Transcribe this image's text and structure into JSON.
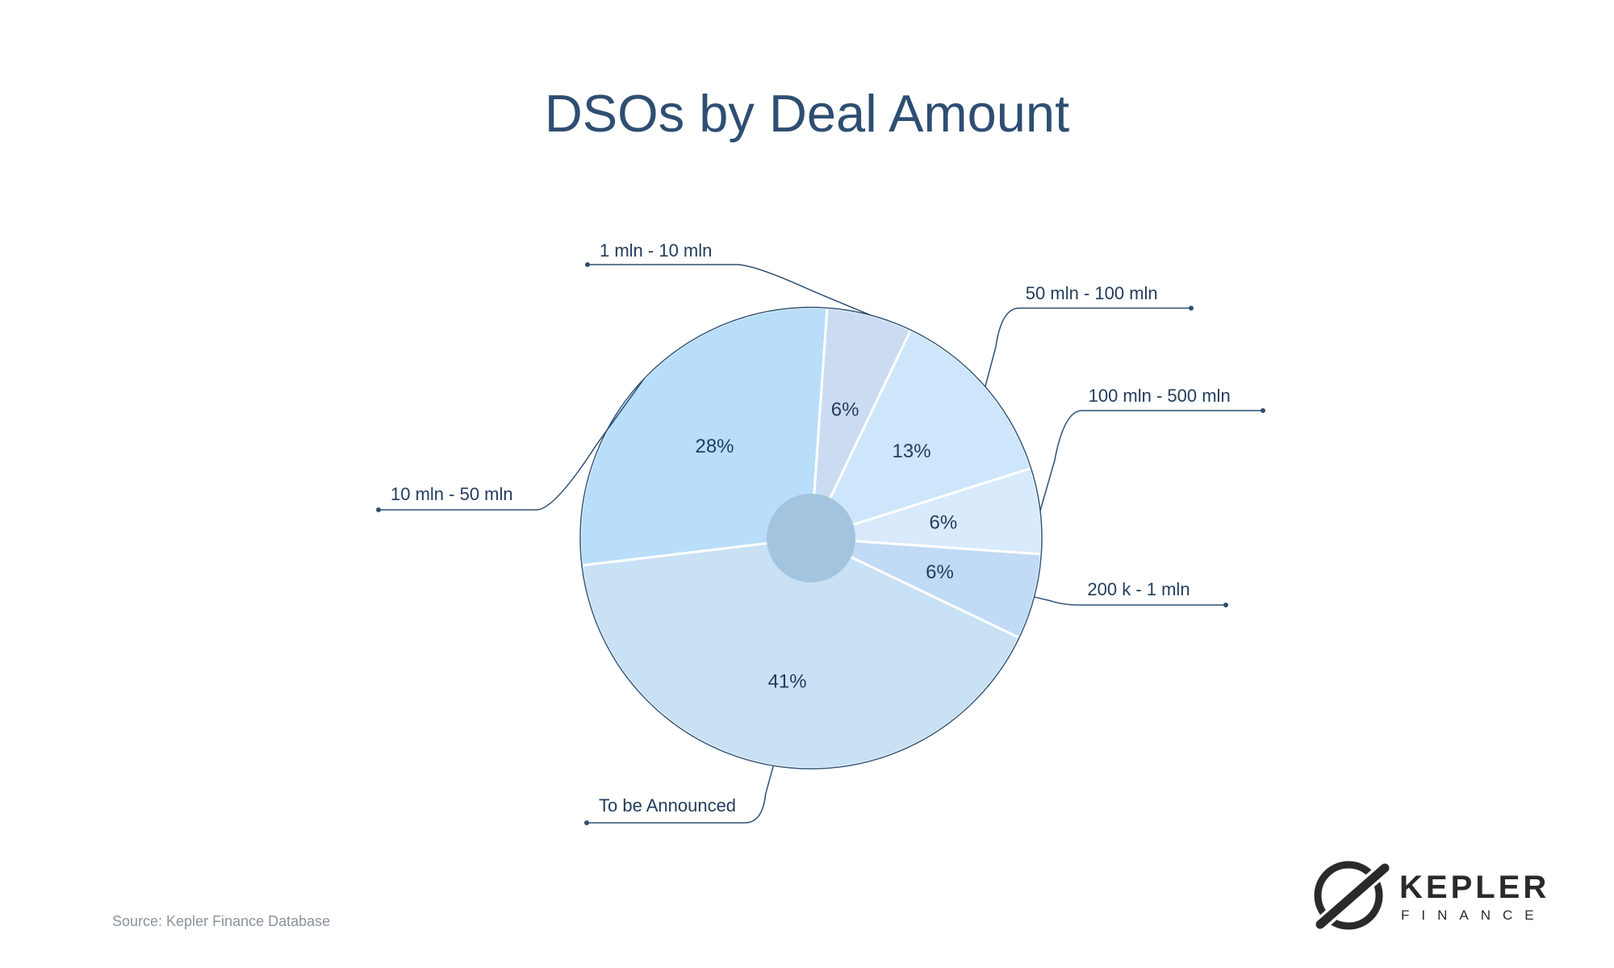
{
  "chart_data": {
    "type": "pie",
    "title": "DSOs by Deal Amount",
    "categories": [
      "1 mln - 10 mln",
      "50 mln - 100 mln",
      "100 mln - 500 mln",
      "200 k - 1 mln",
      "To be Announced",
      "10 mln - 50 mln"
    ],
    "values": [
      6,
      13,
      6,
      6,
      41,
      28
    ],
    "value_labels": [
      "6%",
      "13%",
      "6%",
      "6%",
      "41%",
      "28%"
    ],
    "colors": [
      "#cbdcf2",
      "#cde6fb",
      "#d8eafc",
      "#c1dbf6",
      "#c8e1f4",
      "#b8def9"
    ],
    "center_hole_color": "#a3c4de",
    "outline_color": "#34587d",
    "leader_line_color": "#2e4e72",
    "legend": "none — category labels attached with leader lines"
  },
  "source_note": "Source: Kepler Finance Database",
  "logo": {
    "line1": "KEPLER",
    "line2": "FINANCE",
    "icon": "kepler-logo-icon"
  }
}
